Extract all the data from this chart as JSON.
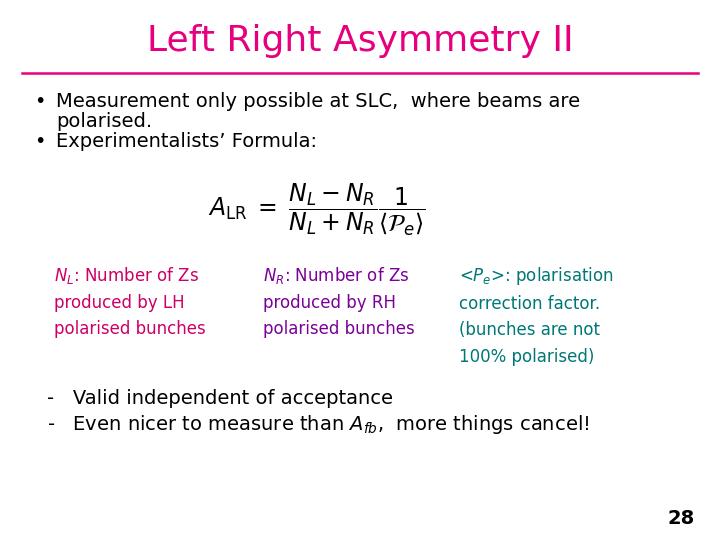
{
  "title": "Left Right Asymmetry II",
  "title_color": "#e6007e",
  "title_fontsize": 26,
  "bg_color": "#ffffff",
  "line_color": "#e6007e",
  "bullet1_line1": "Measurement only possible at SLC,  where beams are",
  "bullet1_line2": "polarised.",
  "bullet2": "Experimentalists’ Formula:",
  "formula": "$A_{\\mathrm{LR}}\\; =\\; \\dfrac{N_L - N_R}{N_L + N_R}\\dfrac{1}{\\langle\\mathcal{P}_e\\rangle}$",
  "nl_text": "$N_L$: Number of Zs\nproduced by LH\npolarised bunches",
  "nl_color": "#cc0066",
  "nr_text": "$N_R$: Number of Zs\nproduced by RH\npolarised bunches",
  "nr_color": "#7b0099",
  "pe_text": "<$P_e$>: polarisation\ncorrection factor.\n(bunches are not\n100% polarised)",
  "pe_color": "#007777",
  "dash1": "-   Valid independent of acceptance",
  "dash2": "-   Even nicer to measure than $A_{fb}$,  more things cancel!",
  "text_color": "#000000",
  "page_num": "28",
  "body_fontsize": 14,
  "annotation_fontsize": 12
}
